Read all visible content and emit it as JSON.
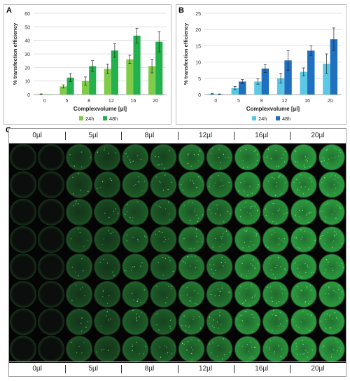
{
  "panels": {
    "a": "A",
    "b": "B",
    "c": "C"
  },
  "chart_data": [
    {
      "type": "bar",
      "categories": [
        "0",
        "5",
        "8",
        "12",
        "16",
        "20"
      ],
      "series": [
        {
          "name": "24h",
          "values": [
            0.3,
            6,
            10,
            19,
            26,
            21
          ],
          "errors": [
            0.2,
            1.2,
            3,
            3.5,
            3,
            5
          ],
          "color": "#7fcc4b"
        },
        {
          "name": "48h",
          "values": [
            0,
            12.5,
            21,
            32.5,
            43.5,
            39
          ],
          "errors": [
            0,
            3,
            4,
            5,
            5.5,
            7.5
          ],
          "color": "#22b14c"
        }
      ],
      "xlabel": "Complexvolume [µl]",
      "ylabel": "% transfection efficiency",
      "ylim": [
        0,
        60
      ],
      "yticks": [
        0,
        10,
        20,
        30,
        40,
        50,
        60
      ],
      "grid": true,
      "legend": "bottom"
    },
    {
      "type": "bar",
      "categories": [
        "0",
        "5",
        "8",
        "12",
        "16",
        "20"
      ],
      "series": [
        {
          "name": "24h",
          "values": [
            0.2,
            2,
            4,
            5,
            7,
            9.5
          ],
          "errors": [
            0.1,
            0.5,
            0.8,
            1.5,
            1.2,
            3
          ],
          "color": "#5bc8e6"
        },
        {
          "name": "48h",
          "values": [
            0.1,
            4,
            8,
            10.5,
            13.5,
            17
          ],
          "errors": [
            0.1,
            0.6,
            1.2,
            3,
            1.5,
            3.5
          ],
          "color": "#1f70bf"
        }
      ],
      "xlabel": "Complexvolume [µl]",
      "ylabel": "% transfection efficiency",
      "ylim": [
        0,
        25
      ],
      "yticks": [
        0,
        5,
        10,
        15,
        20,
        25
      ],
      "grid": true,
      "legend": "bottom"
    }
  ],
  "plate": {
    "column_labels": [
      "0µl",
      "5µl",
      "8µl",
      "12µl",
      "16µl",
      "20µl"
    ],
    "wells_per_group": 2,
    "rows": 8,
    "group_intensity": [
      0.03,
      0.38,
      0.5,
      0.68,
      0.85,
      0.92
    ],
    "well_color": "#39d353"
  }
}
